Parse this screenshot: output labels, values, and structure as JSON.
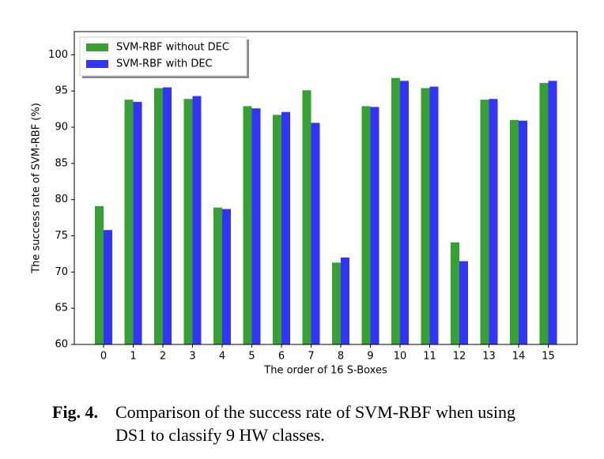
{
  "chart_data": {
    "type": "bar",
    "x_label": "The order of 16 S-Boxes",
    "y_label": "The success rate of SVM-RBF (%)",
    "categories": [
      "0",
      "1",
      "2",
      "3",
      "4",
      "5",
      "6",
      "7",
      "8",
      "9",
      "10",
      "11",
      "12",
      "13",
      "14",
      "15"
    ],
    "series": [
      {
        "name": "SVM-RBF without DEC",
        "color": "#36a132",
        "values": [
          79.1,
          93.8,
          95.4,
          93.9,
          78.9,
          92.9,
          91.7,
          95.1,
          71.3,
          92.9,
          96.8,
          95.4,
          74.1,
          93.8,
          91.0,
          96.1
        ]
      },
      {
        "name": "SVM-RBF with DEC",
        "color": "#3333ff",
        "values": [
          75.8,
          93.5,
          95.5,
          94.3,
          78.7,
          92.6,
          92.1,
          90.6,
          72.0,
          92.8,
          96.4,
          95.6,
          71.5,
          93.9,
          90.9,
          96.4
        ]
      }
    ],
    "ylim": [
      60,
      103.2
    ],
    "yticks": [
      60,
      65,
      70,
      75,
      80,
      85,
      90,
      95,
      100
    ],
    "legend": "upper left"
  },
  "caption": {
    "label": "Fig. 4.",
    "lines": [
      "Comparison of the success rate of SVM-RBF when using",
      "DS1 to classify 9 HW classes."
    ]
  }
}
